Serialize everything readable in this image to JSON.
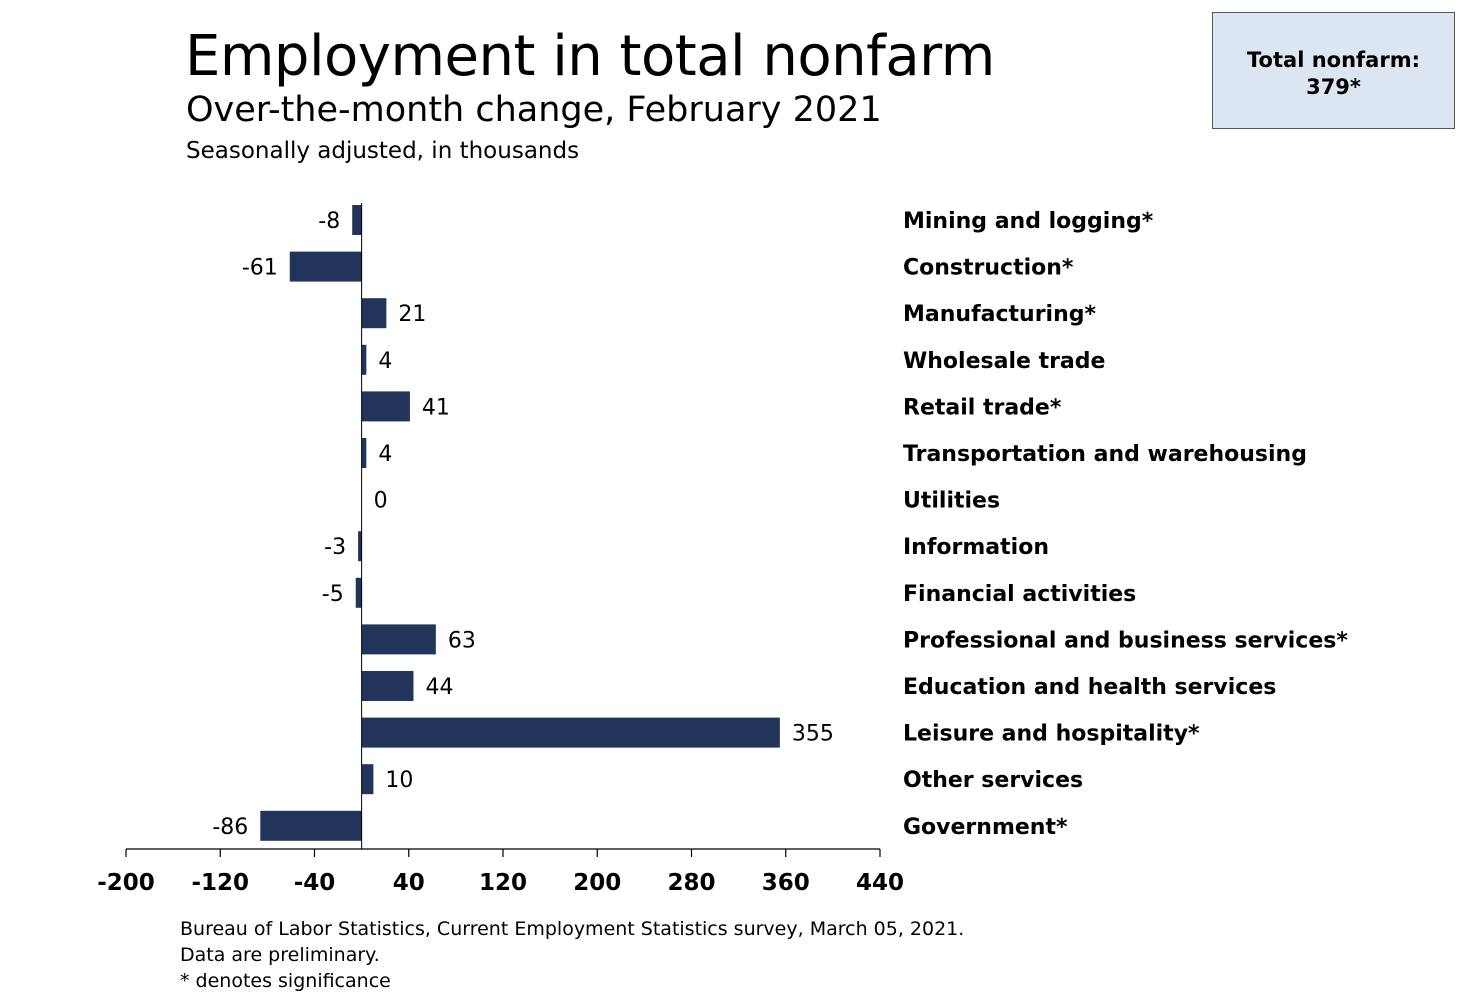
{
  "chart_data": {
    "type": "bar",
    "orientation": "horizontal",
    "title": "Employment in total nonfarm",
    "subtitle": "Over-the-month change, February 2021",
    "units_note": "Seasonally adjusted, in thousands",
    "categories": [
      "Mining and logging*",
      "Construction*",
      "Manufacturing*",
      "Wholesale trade",
      "Retail trade*",
      "Transportation and warehousing",
      "Utilities",
      "Information",
      "Financial activities",
      "Professional and business services*",
      "Education and health services",
      "Leisure and hospitality*",
      "Other services",
      "Government*"
    ],
    "values": [
      -8,
      -61,
      21,
      4,
      41,
      4,
      0,
      -3,
      -5,
      63,
      44,
      355,
      10,
      -86
    ],
    "xlim": [
      -200,
      440
    ],
    "xticks": [
      -200,
      -120,
      -40,
      40,
      120,
      200,
      280,
      360,
      440
    ],
    "grid": false,
    "bar_color": "#22345a"
  },
  "total_box": {
    "label": "Total nonfarm:",
    "value": "379*"
  },
  "footer": {
    "source": "Bureau of Labor Statistics, Current Employment Statistics survey, March 05, 2021.",
    "note": "Data are preliminary.",
    "significance": "* denotes significance"
  }
}
